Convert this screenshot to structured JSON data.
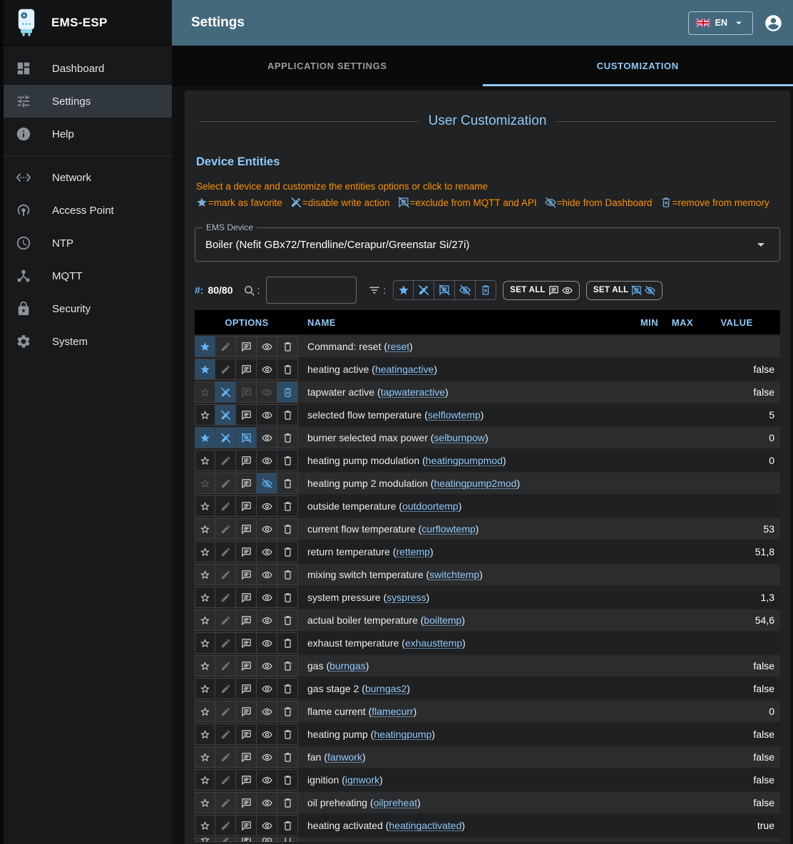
{
  "app": {
    "title": "EMS-ESP",
    "page_title": "Settings",
    "language": "EN"
  },
  "sidebar": {
    "primary": [
      {
        "label": "Dashboard",
        "icon": "dashboard",
        "active": false
      },
      {
        "label": "Settings",
        "icon": "tune",
        "active": true
      },
      {
        "label": "Help",
        "icon": "info",
        "active": false
      }
    ],
    "secondary": [
      {
        "label": "Network",
        "icon": "ethernet",
        "active": false
      },
      {
        "label": "Access Point",
        "icon": "tethering",
        "active": false
      },
      {
        "label": "NTP",
        "icon": "clock",
        "active": false
      },
      {
        "label": "MQTT",
        "icon": "hub",
        "active": false
      },
      {
        "label": "Security",
        "icon": "lock",
        "active": false
      },
      {
        "label": "System",
        "icon": "gear",
        "active": false
      }
    ]
  },
  "tabs": [
    {
      "label": "APPLICATION SETTINGS",
      "active": false
    },
    {
      "label": "CUSTOMIZATION",
      "active": true
    }
  ],
  "panel": {
    "heading": "User Customization",
    "section_title": "Device Entities",
    "hint": "Select a device and customize the entities options or click to rename",
    "legend": [
      {
        "icon": "star-fill",
        "text": "=mark as favorite"
      },
      {
        "icon": "edit-off",
        "text": "=disable write action"
      },
      {
        "icon": "comment-off",
        "text": "=exclude from MQTT and API"
      },
      {
        "icon": "eye-off",
        "text": "=hide from Dashboard"
      },
      {
        "icon": "trash-x",
        "text": "=remove from memory"
      }
    ],
    "device_select": {
      "label": "EMS Device",
      "value": "Boiler (Nefit GBx72/Trendline/Cerapur/Greenstar Si/27i)"
    },
    "filter": {
      "count_prefix": "#:",
      "count": "80/80",
      "search_colon": ":",
      "filter_colon": ":",
      "search_value": "",
      "toggles": [
        {
          "icon": "star-fill",
          "name": "favorite-filter-toggle"
        },
        {
          "icon": "edit-off",
          "name": "write-filter-toggle"
        },
        {
          "icon": "comment-off",
          "name": "mqtt-exclude-filter-toggle"
        },
        {
          "icon": "eye-off",
          "name": "hide-filter-toggle"
        },
        {
          "icon": "trash-x",
          "name": "remove-filter-toggle"
        }
      ],
      "set_all_show": {
        "label": "SET ALL",
        "icons": [
          "comment",
          "eye"
        ]
      },
      "set_all_hide": {
        "label": "SET ALL",
        "icons": [
          "comment-off",
          "eye-off"
        ]
      }
    }
  },
  "table": {
    "headers": [
      "OPTIONS",
      "NAME",
      "MIN",
      "MAX",
      "VALUE"
    ],
    "name_format": {
      "open": " (",
      "close": ")"
    },
    "rows": [
      {
        "label": "Command: reset",
        "code": "reset",
        "min": "",
        "max": "",
        "value": "",
        "opts": [
          "on",
          "disabled",
          "off",
          "off",
          "off"
        ]
      },
      {
        "label": "heating active",
        "code": "heatingactive",
        "min": "",
        "max": "",
        "value": "false",
        "opts": [
          "on",
          "disabled",
          "off",
          "off",
          "off"
        ]
      },
      {
        "label": "tapwater active",
        "code": "tapwateractive",
        "min": "",
        "max": "",
        "value": "false",
        "opts": [
          "dim",
          "on",
          "dim",
          "dim",
          "on"
        ]
      },
      {
        "label": "selected flow temperature",
        "code": "selflowtemp",
        "min": "",
        "max": "",
        "value": "5",
        "opts": [
          "off",
          "on",
          "off",
          "off",
          "off"
        ]
      },
      {
        "label": "burner selected max power",
        "code": "selburnpow",
        "min": "",
        "max": "",
        "value": "0",
        "opts": [
          "on",
          "on",
          "on",
          "off",
          "off"
        ]
      },
      {
        "label": "heating pump modulation",
        "code": "heatingpumpmod",
        "min": "",
        "max": "",
        "value": "0",
        "opts": [
          "off",
          "disabled",
          "off",
          "off",
          "off"
        ]
      },
      {
        "label": "heating pump 2 modulation",
        "code": "heatingpump2mod",
        "min": "",
        "max": "",
        "value": "",
        "opts": [
          "dim",
          "disabled",
          "off",
          "on",
          "off"
        ]
      },
      {
        "label": "outside temperature",
        "code": "outdoortemp",
        "min": "",
        "max": "",
        "value": "",
        "opts": [
          "off",
          "disabled",
          "off",
          "off",
          "off"
        ]
      },
      {
        "label": "current flow temperature",
        "code": "curflowtemp",
        "min": "",
        "max": "",
        "value": "53",
        "opts": [
          "off",
          "disabled",
          "off",
          "off",
          "off"
        ]
      },
      {
        "label": "return temperature",
        "code": "rettemp",
        "min": "",
        "max": "",
        "value": "51,8",
        "opts": [
          "off",
          "disabled",
          "off",
          "off",
          "off"
        ]
      },
      {
        "label": "mixing switch temperature",
        "code": "switchtemp",
        "min": "",
        "max": "",
        "value": "",
        "opts": [
          "off",
          "disabled",
          "off",
          "off",
          "off"
        ]
      },
      {
        "label": "system pressure",
        "code": "syspress",
        "min": "",
        "max": "",
        "value": "1,3",
        "opts": [
          "off",
          "disabled",
          "off",
          "off",
          "off"
        ]
      },
      {
        "label": "actual boiler temperature",
        "code": "boiltemp",
        "min": "",
        "max": "",
        "value": "54,6",
        "opts": [
          "off",
          "disabled",
          "off",
          "off",
          "off"
        ]
      },
      {
        "label": "exhaust temperature",
        "code": "exhausttemp",
        "min": "",
        "max": "",
        "value": "",
        "opts": [
          "off",
          "disabled",
          "off",
          "off",
          "off"
        ]
      },
      {
        "label": "gas",
        "code": "burngas",
        "min": "",
        "max": "",
        "value": "false",
        "opts": [
          "off",
          "disabled",
          "off",
          "off",
          "off"
        ]
      },
      {
        "label": "gas stage 2",
        "code": "burngas2",
        "min": "",
        "max": "",
        "value": "false",
        "opts": [
          "off",
          "disabled",
          "off",
          "off",
          "off"
        ]
      },
      {
        "label": "flame current",
        "code": "flamecurr",
        "min": "",
        "max": "",
        "value": "0",
        "opts": [
          "off",
          "disabled",
          "off",
          "off",
          "off"
        ]
      },
      {
        "label": "heating pump",
        "code": "heatingpump",
        "min": "",
        "max": "",
        "value": "false",
        "opts": [
          "off",
          "disabled",
          "off",
          "off",
          "off"
        ]
      },
      {
        "label": "fan",
        "code": "fanwork",
        "min": "",
        "max": "",
        "value": "false",
        "opts": [
          "off",
          "disabled",
          "off",
          "off",
          "off"
        ]
      },
      {
        "label": "ignition",
        "code": "ignwork",
        "min": "",
        "max": "",
        "value": "false",
        "opts": [
          "off",
          "disabled",
          "off",
          "off",
          "off"
        ]
      },
      {
        "label": "oil preheating",
        "code": "oilpreheat",
        "min": "",
        "max": "",
        "value": "false",
        "opts": [
          "off",
          "disabled",
          "off",
          "off",
          "off"
        ]
      },
      {
        "label": "heating activated",
        "code": "heatingactivated",
        "min": "",
        "max": "",
        "value": "true",
        "opts": [
          "off",
          "disabled",
          "off",
          "off",
          "off"
        ]
      },
      {
        "label": "",
        "code": "",
        "min": "",
        "max": "",
        "value": "",
        "opts": [
          "off",
          "disabled",
          "off",
          "off",
          "off"
        ],
        "partial": true
      }
    ]
  }
}
